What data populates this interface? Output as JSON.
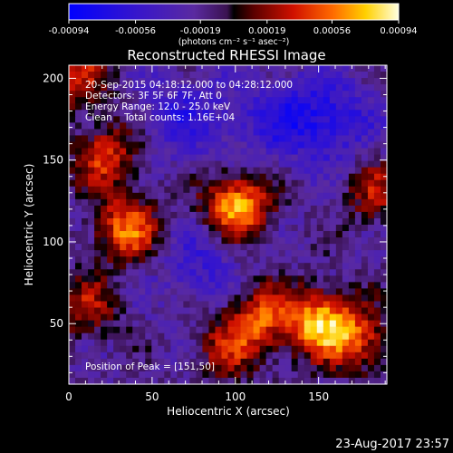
{
  "chart_data": {
    "type": "heatmap",
    "title": "Reconstructed RHESSI Image",
    "xlabel": "Heliocentric X (arcsec)",
    "ylabel": "Heliocentric Y (arcsec)",
    "xlim": [
      0,
      191
    ],
    "ylim": [
      13,
      208
    ],
    "xticks": [
      0,
      50,
      100,
      150
    ],
    "yticks": [
      50,
      100,
      150,
      200
    ],
    "colorbar": {
      "range": [
        -0.00094,
        0.00094
      ],
      "ticks": [
        "-0.00094",
        "-0.00056",
        "-0.00019",
        "0.00019",
        "0.00056",
        "0.00094"
      ],
      "unit_label": "(photons cm⁻² s⁻¹ asec⁻²)"
    },
    "annotations": [
      "20-Sep-2015 04:18:12.000 to 04:28:12.000",
      "Detectors: 3F 5F 6F 7F, Att 0",
      "Energy Range: 12.0 - 25.0 keV",
      "Clean    Total counts: 1.16E+04"
    ],
    "peak_label": "Position of Peak = [151,50]",
    "peak_position": [
      151,
      50
    ],
    "sources": [
      {
        "x": 101,
        "y": 122,
        "amplitude": 0.00094
      },
      {
        "x": 151,
        "y": 50,
        "amplitude": 0.00094
      },
      {
        "x": 35,
        "y": 108,
        "amplitude": 0.00075
      },
      {
        "x": 22,
        "y": 152,
        "amplitude": 0.0006
      },
      {
        "x": 115,
        "y": 55,
        "amplitude": 0.00065
      },
      {
        "x": 175,
        "y": 40,
        "amplitude": 0.00055
      },
      {
        "x": 95,
        "y": 35,
        "amplitude": 0.00045
      },
      {
        "x": 5,
        "y": 200,
        "amplitude": 0.0005
      },
      {
        "x": 185,
        "y": 130,
        "amplitude": 0.00045
      },
      {
        "x": 10,
        "y": 60,
        "amplitude": 0.00045
      }
    ],
    "negative_regions": [
      {
        "x": 155,
        "y": 175,
        "amplitude": -0.0005
      },
      {
        "x": 70,
        "y": 175,
        "amplitude": -0.00035
      },
      {
        "x": 80,
        "y": 85,
        "amplitude": -0.0003
      },
      {
        "x": 120,
        "y": 175,
        "amplitude": -0.0003
      }
    ]
  },
  "footer_timestamp": "23-Aug-2017 23:57"
}
